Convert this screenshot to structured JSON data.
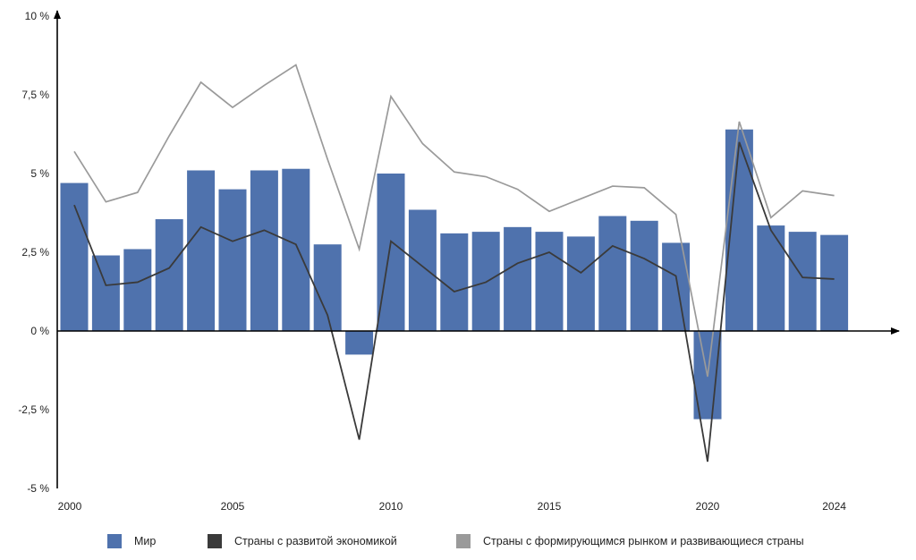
{
  "chart_data": {
    "type": "bar",
    "x": [
      2000,
      2001,
      2002,
      2003,
      2004,
      2005,
      2006,
      2007,
      2008,
      2009,
      2010,
      2011,
      2012,
      2013,
      2014,
      2015,
      2016,
      2017,
      2018,
      2019,
      2020,
      2021,
      2022,
      2023,
      2024
    ],
    "x_tick_labels": [
      "2000",
      "2005",
      "2010",
      "2015",
      "2020",
      "2024"
    ],
    "y_tick_labels": [
      "-5 %",
      "-2,5 %",
      "0 %",
      "2,5 %",
      "5 %",
      "7,5 %",
      "10 %"
    ],
    "ylim": [
      -5,
      10
    ],
    "series": [
      {
        "name": "Мир",
        "type": "bar",
        "color": "#4f72ad",
        "values": [
          4.7,
          2.4,
          2.6,
          3.55,
          5.1,
          4.5,
          5.1,
          5.15,
          2.75,
          -0.75,
          5.0,
          3.85,
          3.1,
          3.15,
          3.3,
          3.15,
          3.0,
          3.65,
          3.5,
          2.8,
          -2.8,
          6.4,
          3.35,
          3.15,
          3.05
        ]
      },
      {
        "name": "Страны с развитой экономикой",
        "type": "line",
        "color": "#3a3a3a",
        "values": [
          4.0,
          1.45,
          1.55,
          2.0,
          3.3,
          2.85,
          3.2,
          2.75,
          0.5,
          -3.45,
          2.85,
          2.05,
          1.25,
          1.55,
          2.15,
          2.5,
          1.85,
          2.7,
          2.3,
          1.75,
          -4.15,
          6.0,
          3.2,
          1.7,
          1.65
        ]
      },
      {
        "name": "Страны с формирующимся рынком и развивающиеся страны",
        "type": "line",
        "color": "#9a9a9a",
        "values": [
          5.7,
          4.1,
          4.4,
          6.2,
          7.9,
          7.1,
          7.8,
          8.45,
          5.45,
          2.6,
          7.45,
          5.95,
          5.05,
          4.9,
          4.5,
          3.8,
          4.2,
          4.6,
          4.55,
          3.7,
          -1.45,
          6.65,
          3.6,
          4.45,
          4.3
        ]
      }
    ],
    "grid": false,
    "legend_position": "bottom"
  }
}
